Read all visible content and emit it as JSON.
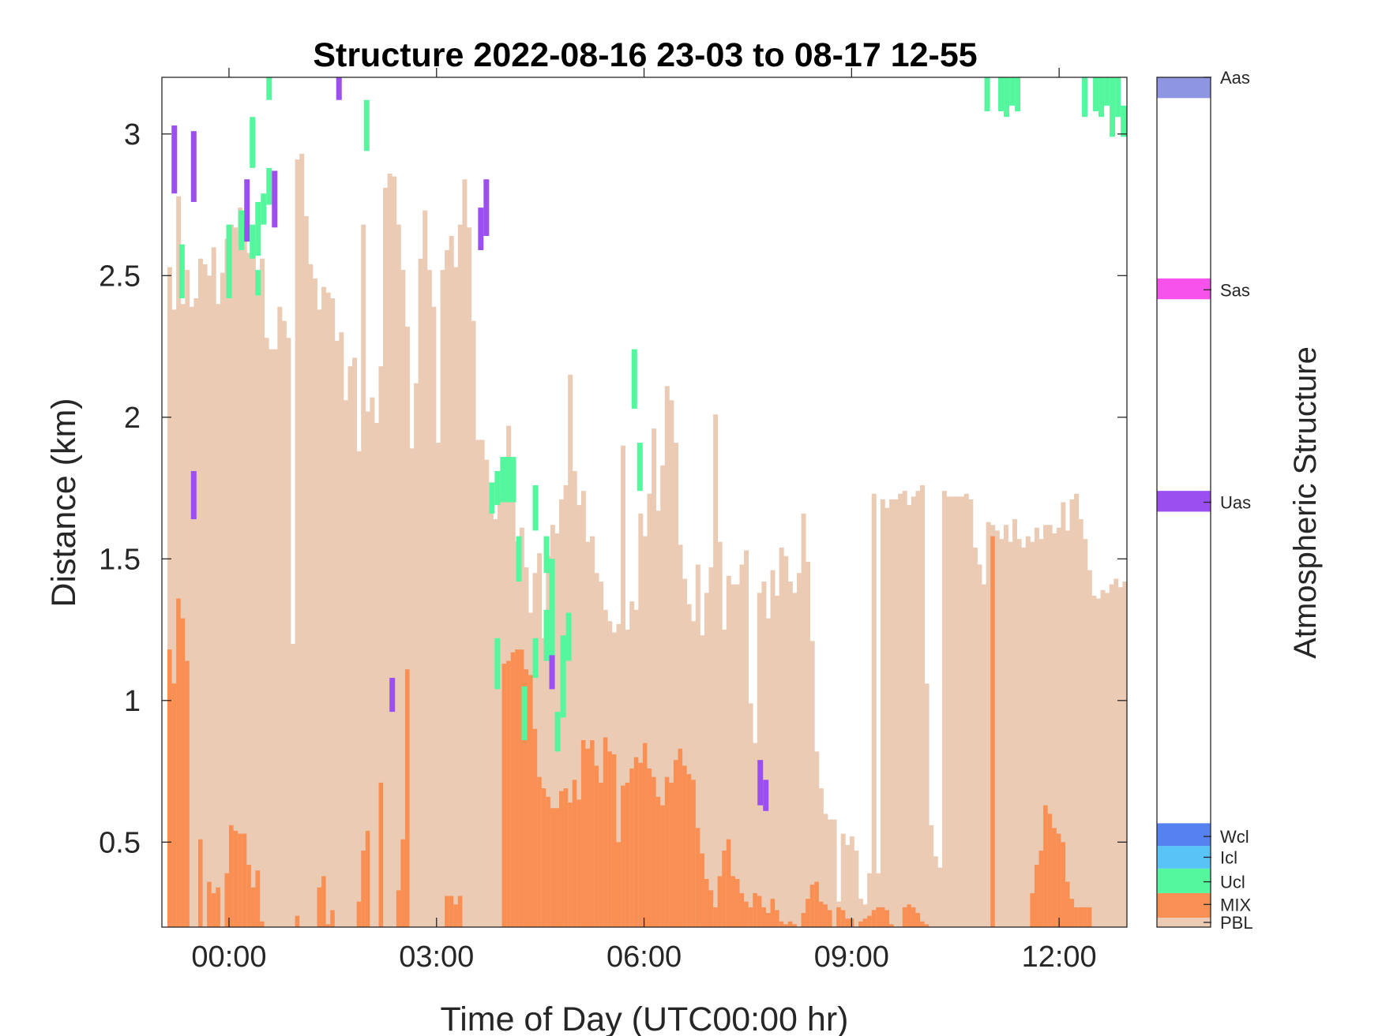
{
  "chart_data": {
    "type": "heatmap",
    "title": "Structure 2022-08-16 23-03 to 08-17 12-55",
    "xlabel": "Time of Day (UTC00:00 hr)",
    "ylabel": "Distance (km)",
    "x_range_hours": [
      -0.97,
      12.98
    ],
    "y_range_km": [
      0.2,
      3.2
    ],
    "x_ticks": [
      {
        "value": 0,
        "label": "00:00"
      },
      {
        "value": 3,
        "label": "03:00"
      },
      {
        "value": 6,
        "label": "06:00"
      },
      {
        "value": 9,
        "label": "09:00"
      },
      {
        "value": 12,
        "label": "12:00"
      }
    ],
    "y_ticks": [
      {
        "value": 0.5,
        "label": "0.5"
      },
      {
        "value": 1,
        "label": "1"
      },
      {
        "value": 1.5,
        "label": "1.5"
      },
      {
        "value": 2,
        "label": "2"
      },
      {
        "value": 2.5,
        "label": "2.5"
      },
      {
        "value": 3,
        "label": "3"
      }
    ],
    "classes": [
      {
        "name": "PBL",
        "color": "#ebcbb4"
      },
      {
        "name": "MIX",
        "color": "#f98f52"
      },
      {
        "name": "Ucl",
        "color": "#54f79d"
      },
      {
        "name": "Icl",
        "color": "#57c3f7"
      },
      {
        "name": "Wcl",
        "color": "#5681f1"
      },
      {
        "name": "Uas",
        "color": "#9c4ff0"
      },
      {
        "name": "Sas",
        "color": "#f753ec"
      },
      {
        "name": "Aas",
        "color": "#8e95e2"
      }
    ],
    "colorbar": {
      "label": "Atmospheric Structure",
      "range": [
        0,
        9
      ],
      "entries": [
        {
          "label": "PBL",
          "pos": 0.05,
          "lo": 0.0,
          "hi": 0.1
        },
        {
          "label": "MIX",
          "pos": 0.24,
          "lo": 0.1,
          "hi": 0.36
        },
        {
          "label": "Ucl",
          "pos": 0.48,
          "lo": 0.36,
          "hi": 0.62
        },
        {
          "label": "Icl",
          "pos": 0.74,
          "lo": 0.62,
          "hi": 0.86
        },
        {
          "label": "Wcl",
          "pos": 0.96,
          "lo": 0.86,
          "hi": 1.1
        },
        {
          "label": "Uas",
          "pos": 4.5,
          "lo": 4.4,
          "hi": 4.62
        },
        {
          "label": "Sas",
          "pos": 6.75,
          "lo": 6.65,
          "hi": 6.87
        },
        {
          "label": "Aas",
          "pos": 9.0,
          "lo": 8.78,
          "hi": 9.0
        }
      ]
    },
    "pbl_top_km": [
      2.53,
      2.38,
      2.78,
      2.4,
      2.52,
      2.39,
      2.42,
      2.56,
      2.54,
      2.5,
      2.6,
      2.4,
      2.51,
      2.63,
      2.68,
      2.67,
      2.74,
      2.68,
      2.58,
      2.62,
      2.43,
      2.56,
      2.28,
      2.24,
      2.24,
      2.39,
      2.34,
      2.28,
      1.2,
      2.91,
      2.93,
      2.71,
      2.54,
      2.49,
      2.38,
      2.46,
      2.44,
      2.42,
      2.27,
      2.3,
      2.06,
      2.18,
      2.21,
      1.88,
      2.68,
      2.02,
      2.07,
      1.98,
      2.18,
      2.81,
      2.86,
      2.85,
      2.68,
      2.52,
      2.32,
      1.89,
      2.12,
      2.56,
      2.73,
      2.52,
      2.39,
      1.91,
      2.52,
      2.59,
      2.64,
      2.53,
      2.68,
      2.84,
      2.67,
      2.34,
      1.92,
      1.92,
      1.85,
      1.67,
      1.64,
      1.72,
      1.86,
      1.97,
      1.71,
      1.56,
      1.61,
      1.47,
      1.31,
      1.45,
      1.52,
      1.22,
      1.51,
      1.62,
      1.59,
      1.71,
      1.76,
      2.15,
      1.81,
      1.69,
      1.74,
      1.56,
      1.58,
      1.45,
      1.42,
      1.32,
      1.28,
      1.24,
      1.27,
      1.9,
      1.25,
      1.35,
      1.32,
      1.66,
      1.58,
      1.73,
      1.96,
      1.67,
      1.83,
      2.11,
      2.06,
      1.91,
      1.55,
      1.43,
      1.34,
      1.28,
      1.48,
      1.23,
      1.38,
      1.47,
      2.01,
      1.56,
      1.25,
      1.44,
      1.41,
      1.41,
      1.48,
      1.53,
      0.99,
      0.85,
      1.38,
      1.42,
      1.29,
      1.46,
      1.37,
      1.54,
      1.51,
      1.42,
      1.38,
      1.45,
      1.66,
      1.49,
      1.21,
      0.82,
      0.69,
      0.6,
      0.58,
      0.58,
      0.29,
      0.53,
      0.49,
      0.52,
      0.47,
      0.3,
      0.28,
      0.39,
      1.73,
      0.39,
      1.71,
      1.68,
      1.71,
      1.71,
      1.73,
      1.74,
      1.69,
      1.72,
      1.74,
      1.76,
      1.06,
      0.56,
      0.45,
      0.41,
      1.74,
      1.72,
      1.72,
      1.72,
      1.72,
      1.73,
      1.71,
      1.54,
      1.48,
      1.41,
      1.63,
      1.62,
      1.6,
      1.57,
      1.62,
      1.56,
      1.64,
      1.57,
      1.54,
      1.58,
      1.56,
      1.61,
      1.57,
      1.62,
      1.62,
      1.59,
      1.61,
      1.7,
      1.6,
      1.71,
      1.73,
      1.64,
      1.57,
      1.46,
      1.37,
      1.36,
      1.39,
      1.38,
      1.41,
      1.43,
      1.4,
      1.42
    ],
    "mix_top_km": [
      1.18,
      1.06,
      1.36,
      1.29,
      1.14,
      0,
      0,
      0.51,
      0,
      0.36,
      0.32,
      0.34,
      0,
      0.39,
      0.56,
      0.54,
      0.53,
      0.53,
      0.42,
      0.34,
      0.4,
      0.22,
      0,
      0,
      0,
      0,
      0,
      0,
      0,
      0.24,
      0,
      0,
      0,
      0,
      0.34,
      0.38,
      0.21,
      0.26,
      0,
      0,
      0,
      0,
      0,
      0.29,
      0.47,
      0.54,
      0,
      0,
      0.71,
      0,
      0,
      0,
      0.33,
      0.51,
      1.11,
      0,
      0,
      0,
      0,
      0,
      0,
      0,
      0,
      0.31,
      0.31,
      0.28,
      0.31,
      0,
      0,
      0,
      0,
      0,
      0,
      0,
      0,
      0,
      1.13,
      1.14,
      1.17,
      1.18,
      1.18,
      1.11,
      1.09,
      0.9,
      0.73,
      0.69,
      0.66,
      0.62,
      0.62,
      0.68,
      0.69,
      0.64,
      0.72,
      0.65,
      0.86,
      0.83,
      0.86,
      0.77,
      0.71,
      0.87,
      0.82,
      0.81,
      0.5,
      0.7,
      0.71,
      0.76,
      0.8,
      0.78,
      0.85,
      0.76,
      0.73,
      0.66,
      0.63,
      0.73,
      0.71,
      0.79,
      0.83,
      0.77,
      0.74,
      0.72,
      0.55,
      0.46,
      0.37,
      0.33,
      0.27,
      0.38,
      0.47,
      0.51,
      0.38,
      0.37,
      0.32,
      0.29,
      0.27,
      0.32,
      0.31,
      0.27,
      0.25,
      0.3,
      0.26,
      0.22,
      0.21,
      0.22,
      0.21,
      0.2,
      0.25,
      0.3,
      0.35,
      0.36,
      0.29,
      0.28,
      0.26,
      0.2,
      0.27,
      0.26,
      0.23,
      0.23,
      0.2,
      0.22,
      0.23,
      0.24,
      0.26,
      0.27,
      0.27,
      0.26,
      0.21,
      0.2,
      0.2,
      0.27,
      0.28,
      0.27,
      0.25,
      0.22,
      0.21,
      0.2,
      0.2,
      0.2,
      0.2,
      0.2,
      0.2,
      0.2,
      0.2,
      0.2,
      0.2,
      0.2,
      0.2,
      0.2,
      0.2,
      1.58,
      0.2,
      0.2,
      0.2,
      0.2,
      0.2,
      0.2,
      0.2,
      0.2,
      0.32,
      0.42,
      0.47,
      0.63,
      0.6,
      0.55,
      0.53,
      0.5,
      0.36,
      0.3,
      0.27,
      0.27,
      0.27,
      0.27
    ],
    "layers": [
      {
        "cls": "Uas",
        "t0": -0.83,
        "t1": -0.75,
        "y0": 2.79,
        "y1": 3.03
      },
      {
        "cls": "Uas",
        "t0": -0.55,
        "t1": -0.47,
        "y0": 2.76,
        "y1": 3.01
      },
      {
        "cls": "Uas",
        "t0": -0.55,
        "t1": -0.47,
        "y0": 1.64,
        "y1": 1.81
      },
      {
        "cls": "Ucl",
        "t0": -0.72,
        "t1": -0.64,
        "y0": 2.42,
        "y1": 2.61
      },
      {
        "cls": "Ucl",
        "t0": -0.04,
        "t1": 0.04,
        "y0": 2.42,
        "y1": 2.68
      },
      {
        "cls": "Ucl",
        "t0": 0.14,
        "t1": 0.22,
        "y0": 2.59,
        "y1": 2.73
      },
      {
        "cls": "Uas",
        "t0": 0.22,
        "t1": 0.3,
        "y0": 2.62,
        "y1": 2.84
      },
      {
        "cls": "Ucl",
        "t0": 0.3,
        "t1": 0.38,
        "y0": 2.56,
        "y1": 2.68
      },
      {
        "cls": "Ucl",
        "t0": 0.3,
        "t1": 0.38,
        "y0": 2.88,
        "y1": 3.06
      },
      {
        "cls": "Ucl",
        "t0": 0.38,
        "t1": 0.46,
        "y0": 2.57,
        "y1": 2.76
      },
      {
        "cls": "Ucl",
        "t0": 0.38,
        "t1": 0.46,
        "y0": 2.43,
        "y1": 2.52
      },
      {
        "cls": "Ucl",
        "t0": 0.46,
        "t1": 0.54,
        "y0": 2.68,
        "y1": 2.79
      },
      {
        "cls": "Ucl",
        "t0": 0.54,
        "t1": 0.62,
        "y0": 2.75,
        "y1": 2.88
      },
      {
        "cls": "Ucl",
        "t0": 0.54,
        "t1": 0.62,
        "y0": 3.12,
        "y1": 3.2
      },
      {
        "cls": "Uas",
        "t0": 0.62,
        "t1": 0.7,
        "y0": 2.67,
        "y1": 2.87
      },
      {
        "cls": "Uas",
        "t0": 1.55,
        "t1": 1.63,
        "y0": 3.12,
        "y1": 3.2
      },
      {
        "cls": "Ucl",
        "t0": 1.95,
        "t1": 2.03,
        "y0": 2.94,
        "y1": 3.12
      },
      {
        "cls": "Uas",
        "t0": 2.32,
        "t1": 2.4,
        "y0": 0.96,
        "y1": 1.08
      },
      {
        "cls": "Uas",
        "t0": 3.6,
        "t1": 3.68,
        "y0": 2.59,
        "y1": 2.74
      },
      {
        "cls": "Uas",
        "t0": 3.68,
        "t1": 3.76,
        "y0": 2.64,
        "y1": 2.84
      },
      {
        "cls": "Ucl",
        "t0": 3.76,
        "t1": 3.84,
        "y0": 1.66,
        "y1": 1.77
      },
      {
        "cls": "Ucl",
        "t0": 3.84,
        "t1": 3.92,
        "y0": 1.69,
        "y1": 1.81
      },
      {
        "cls": "Ucl",
        "t0": 3.92,
        "t1": 4.15,
        "y0": 1.7,
        "y1": 1.86
      },
      {
        "cls": "Ucl",
        "t0": 4.0,
        "t1": 4.08,
        "y0": 1.84,
        "y1": 1.86
      },
      {
        "cls": "Ucl",
        "t0": 3.84,
        "t1": 3.92,
        "y0": 1.04,
        "y1": 1.22
      },
      {
        "cls": "Ucl",
        "t0": 4.15,
        "t1": 4.23,
        "y0": 1.42,
        "y1": 1.58
      },
      {
        "cls": "Ucl",
        "t0": 4.23,
        "t1": 4.31,
        "y0": 0.86,
        "y1": 1.05
      },
      {
        "cls": "Ucl",
        "t0": 4.39,
        "t1": 4.47,
        "y0": 1.6,
        "y1": 1.76
      },
      {
        "cls": "Ucl",
        "t0": 4.39,
        "t1": 4.47,
        "y0": 1.08,
        "y1": 1.22
      },
      {
        "cls": "Ucl",
        "t0": 4.55,
        "t1": 4.63,
        "y0": 1.45,
        "y1": 1.58
      },
      {
        "cls": "Ucl",
        "t0": 4.55,
        "t1": 4.63,
        "y0": 1.14,
        "y1": 1.32
      },
      {
        "cls": "Ucl",
        "t0": 4.63,
        "t1": 4.71,
        "y0": 1.05,
        "y1": 1.5
      },
      {
        "cls": "Uas",
        "t0": 4.63,
        "t1": 4.71,
        "y0": 1.04,
        "y1": 1.16
      },
      {
        "cls": "Ucl",
        "t0": 4.71,
        "t1": 4.79,
        "y0": 0.82,
        "y1": 0.96
      },
      {
        "cls": "Ucl",
        "t0": 4.79,
        "t1": 4.87,
        "y0": 0.94,
        "y1": 1.23
      },
      {
        "cls": "Ucl",
        "t0": 4.87,
        "t1": 4.95,
        "y0": 1.14,
        "y1": 1.31
      },
      {
        "cls": "Ucl",
        "t0": 5.82,
        "t1": 5.9,
        "y0": 2.03,
        "y1": 2.24
      },
      {
        "cls": "Ucl",
        "t0": 5.9,
        "t1": 5.98,
        "y0": 1.74,
        "y1": 1.91
      },
      {
        "cls": "Uas",
        "t0": 7.64,
        "t1": 7.72,
        "y0": 0.63,
        "y1": 0.79
      },
      {
        "cls": "Uas",
        "t0": 7.72,
        "t1": 7.8,
        "y0": 0.61,
        "y1": 0.72
      },
      {
        "cls": "Ucl",
        "t0": 10.92,
        "t1": 11.0,
        "y0": 3.08,
        "y1": 3.2
      },
      {
        "cls": "Ucl",
        "t0": 11.12,
        "t1": 11.2,
        "y0": 3.08,
        "y1": 3.2
      },
      {
        "cls": "Ucl",
        "t0": 11.2,
        "t1": 11.28,
        "y0": 3.06,
        "y1": 3.2
      },
      {
        "cls": "Ucl",
        "t0": 11.28,
        "t1": 11.36,
        "y0": 3.1,
        "y1": 3.2
      },
      {
        "cls": "Ucl",
        "t0": 11.36,
        "t1": 11.44,
        "y0": 3.08,
        "y1": 3.2
      },
      {
        "cls": "Ucl",
        "t0": 12.33,
        "t1": 12.41,
        "y0": 3.06,
        "y1": 3.2
      },
      {
        "cls": "Ucl",
        "t0": 12.49,
        "t1": 12.57,
        "y0": 3.08,
        "y1": 3.2
      },
      {
        "cls": "Ucl",
        "t0": 12.57,
        "t1": 12.65,
        "y0": 3.06,
        "y1": 3.2
      },
      {
        "cls": "Ucl",
        "t0": 12.65,
        "t1": 12.73,
        "y0": 3.1,
        "y1": 3.2
      },
      {
        "cls": "Ucl",
        "t0": 12.73,
        "t1": 12.81,
        "y0": 2.99,
        "y1": 3.2
      },
      {
        "cls": "Ucl",
        "t0": 12.81,
        "t1": 12.89,
        "y0": 3.06,
        "y1": 3.2
      },
      {
        "cls": "Ucl",
        "t0": 12.89,
        "t1": 12.98,
        "y0": 2.99,
        "y1": 3.1
      }
    ]
  }
}
